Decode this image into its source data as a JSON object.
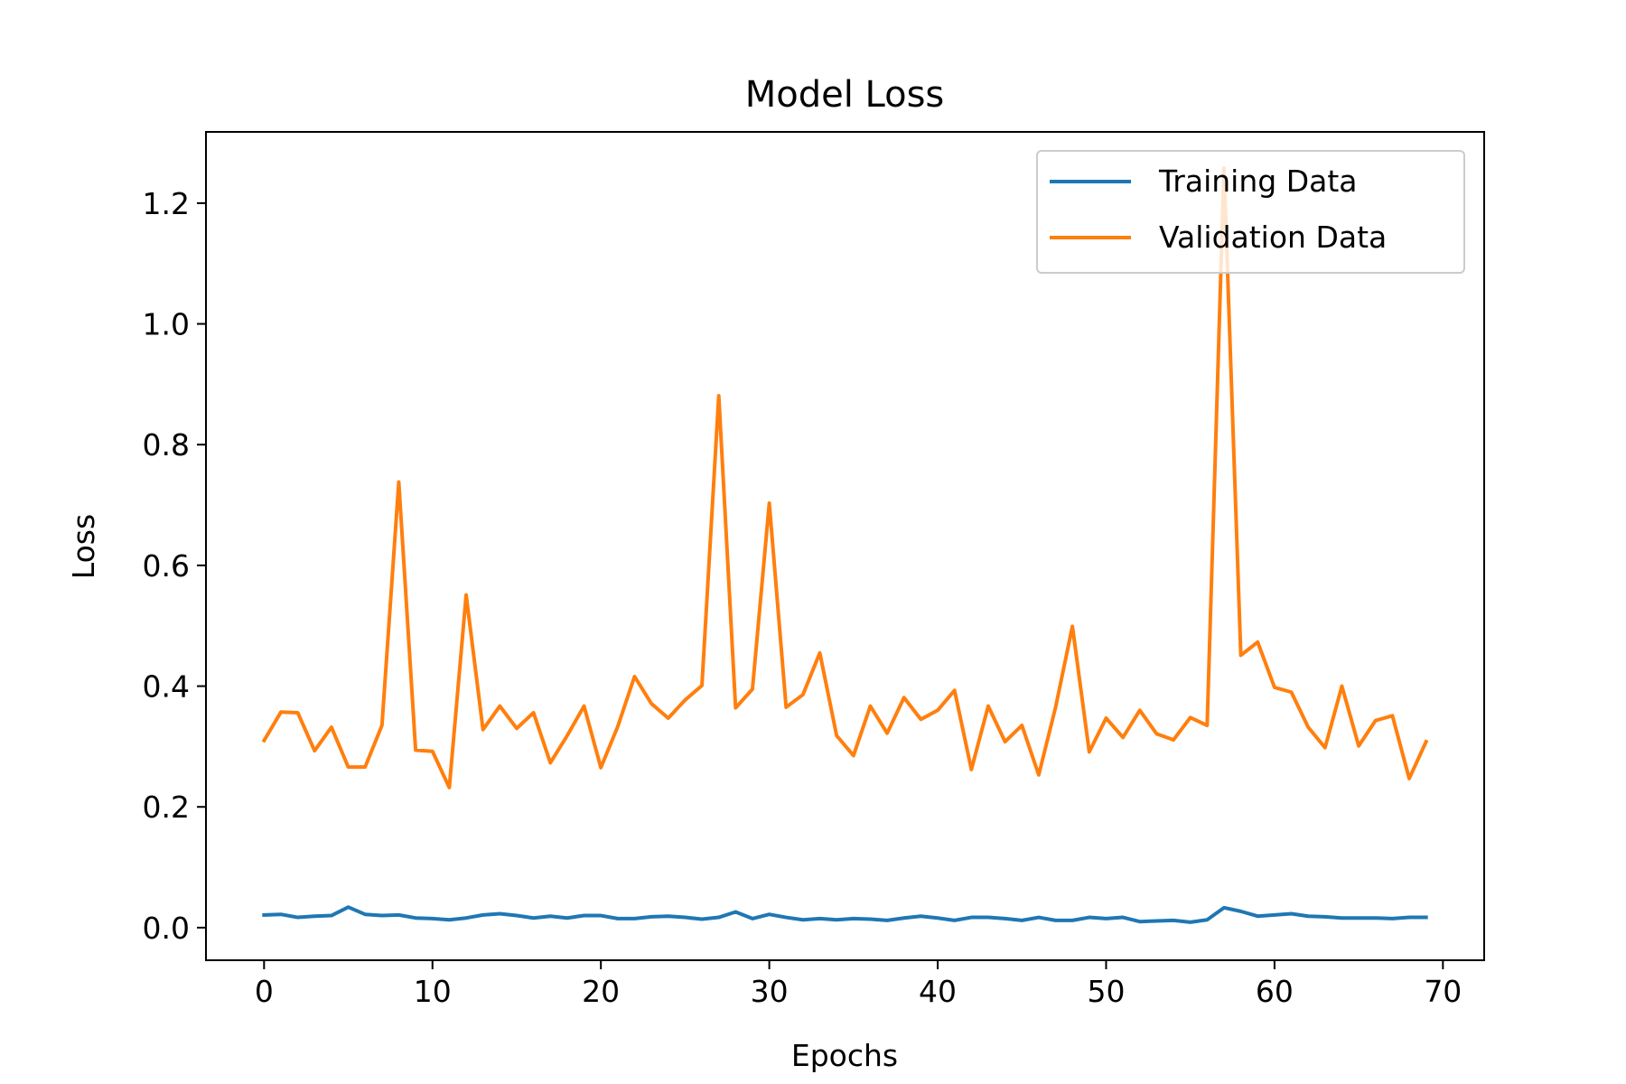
{
  "chart_data": {
    "type": "line",
    "title": "Model Loss",
    "xlabel": "Epochs",
    "ylabel": "Loss",
    "xlim": [
      -3.45,
      72.45
    ],
    "ylim": [
      -0.054,
      1.318
    ],
    "xticks": [
      0,
      10,
      20,
      30,
      40,
      50,
      60,
      70
    ],
    "yticks": [
      0.0,
      0.2,
      0.4,
      0.6,
      0.8,
      1.0,
      1.2
    ],
    "ytick_labels": [
      "0.0",
      "0.2",
      "0.4",
      "0.6",
      "0.8",
      "1.0",
      "1.2"
    ],
    "legend_position": "top-right",
    "grid": false,
    "series": [
      {
        "name": "Training Data",
        "color": "#1f77b4",
        "values": [
          0.021,
          0.022,
          0.017,
          0.019,
          0.02,
          0.034,
          0.022,
          0.02,
          0.021,
          0.016,
          0.015,
          0.013,
          0.016,
          0.021,
          0.023,
          0.02,
          0.016,
          0.019,
          0.016,
          0.02,
          0.02,
          0.015,
          0.015,
          0.018,
          0.019,
          0.017,
          0.014,
          0.017,
          0.026,
          0.015,
          0.022,
          0.017,
          0.013,
          0.015,
          0.013,
          0.015,
          0.014,
          0.012,
          0.016,
          0.019,
          0.016,
          0.012,
          0.017,
          0.017,
          0.015,
          0.012,
          0.017,
          0.012,
          0.012,
          0.017,
          0.015,
          0.017,
          0.01,
          0.011,
          0.012,
          0.009,
          0.013,
          0.033,
          0.027,
          0.019,
          0.021,
          0.023,
          0.019,
          0.018,
          0.016,
          0.016,
          0.016,
          0.015,
          0.017,
          0.017
        ]
      },
      {
        "name": "Validation Data",
        "color": "#ff7f0e",
        "values": [
          0.31,
          0.357,
          0.356,
          0.293,
          0.332,
          0.266,
          0.266,
          0.335,
          0.738,
          0.294,
          0.292,
          0.232,
          0.551,
          0.328,
          0.367,
          0.33,
          0.356,
          0.273,
          0.318,
          0.367,
          0.265,
          0.333,
          0.416,
          0.371,
          0.347,
          0.377,
          0.401,
          0.881,
          0.364,
          0.395,
          0.703,
          0.365,
          0.386,
          0.455,
          0.318,
          0.285,
          0.367,
          0.322,
          0.381,
          0.345,
          0.36,
          0.393,
          0.262,
          0.367,
          0.308,
          0.335,
          0.253,
          0.365,
          0.499,
          0.291,
          0.347,
          0.315,
          0.36,
          0.321,
          0.311,
          0.348,
          0.335,
          1.258,
          0.451,
          0.473,
          0.398,
          0.39,
          0.332,
          0.298,
          0.4,
          0.301,
          0.343,
          0.351,
          0.247,
          0.308
        ]
      }
    ]
  }
}
